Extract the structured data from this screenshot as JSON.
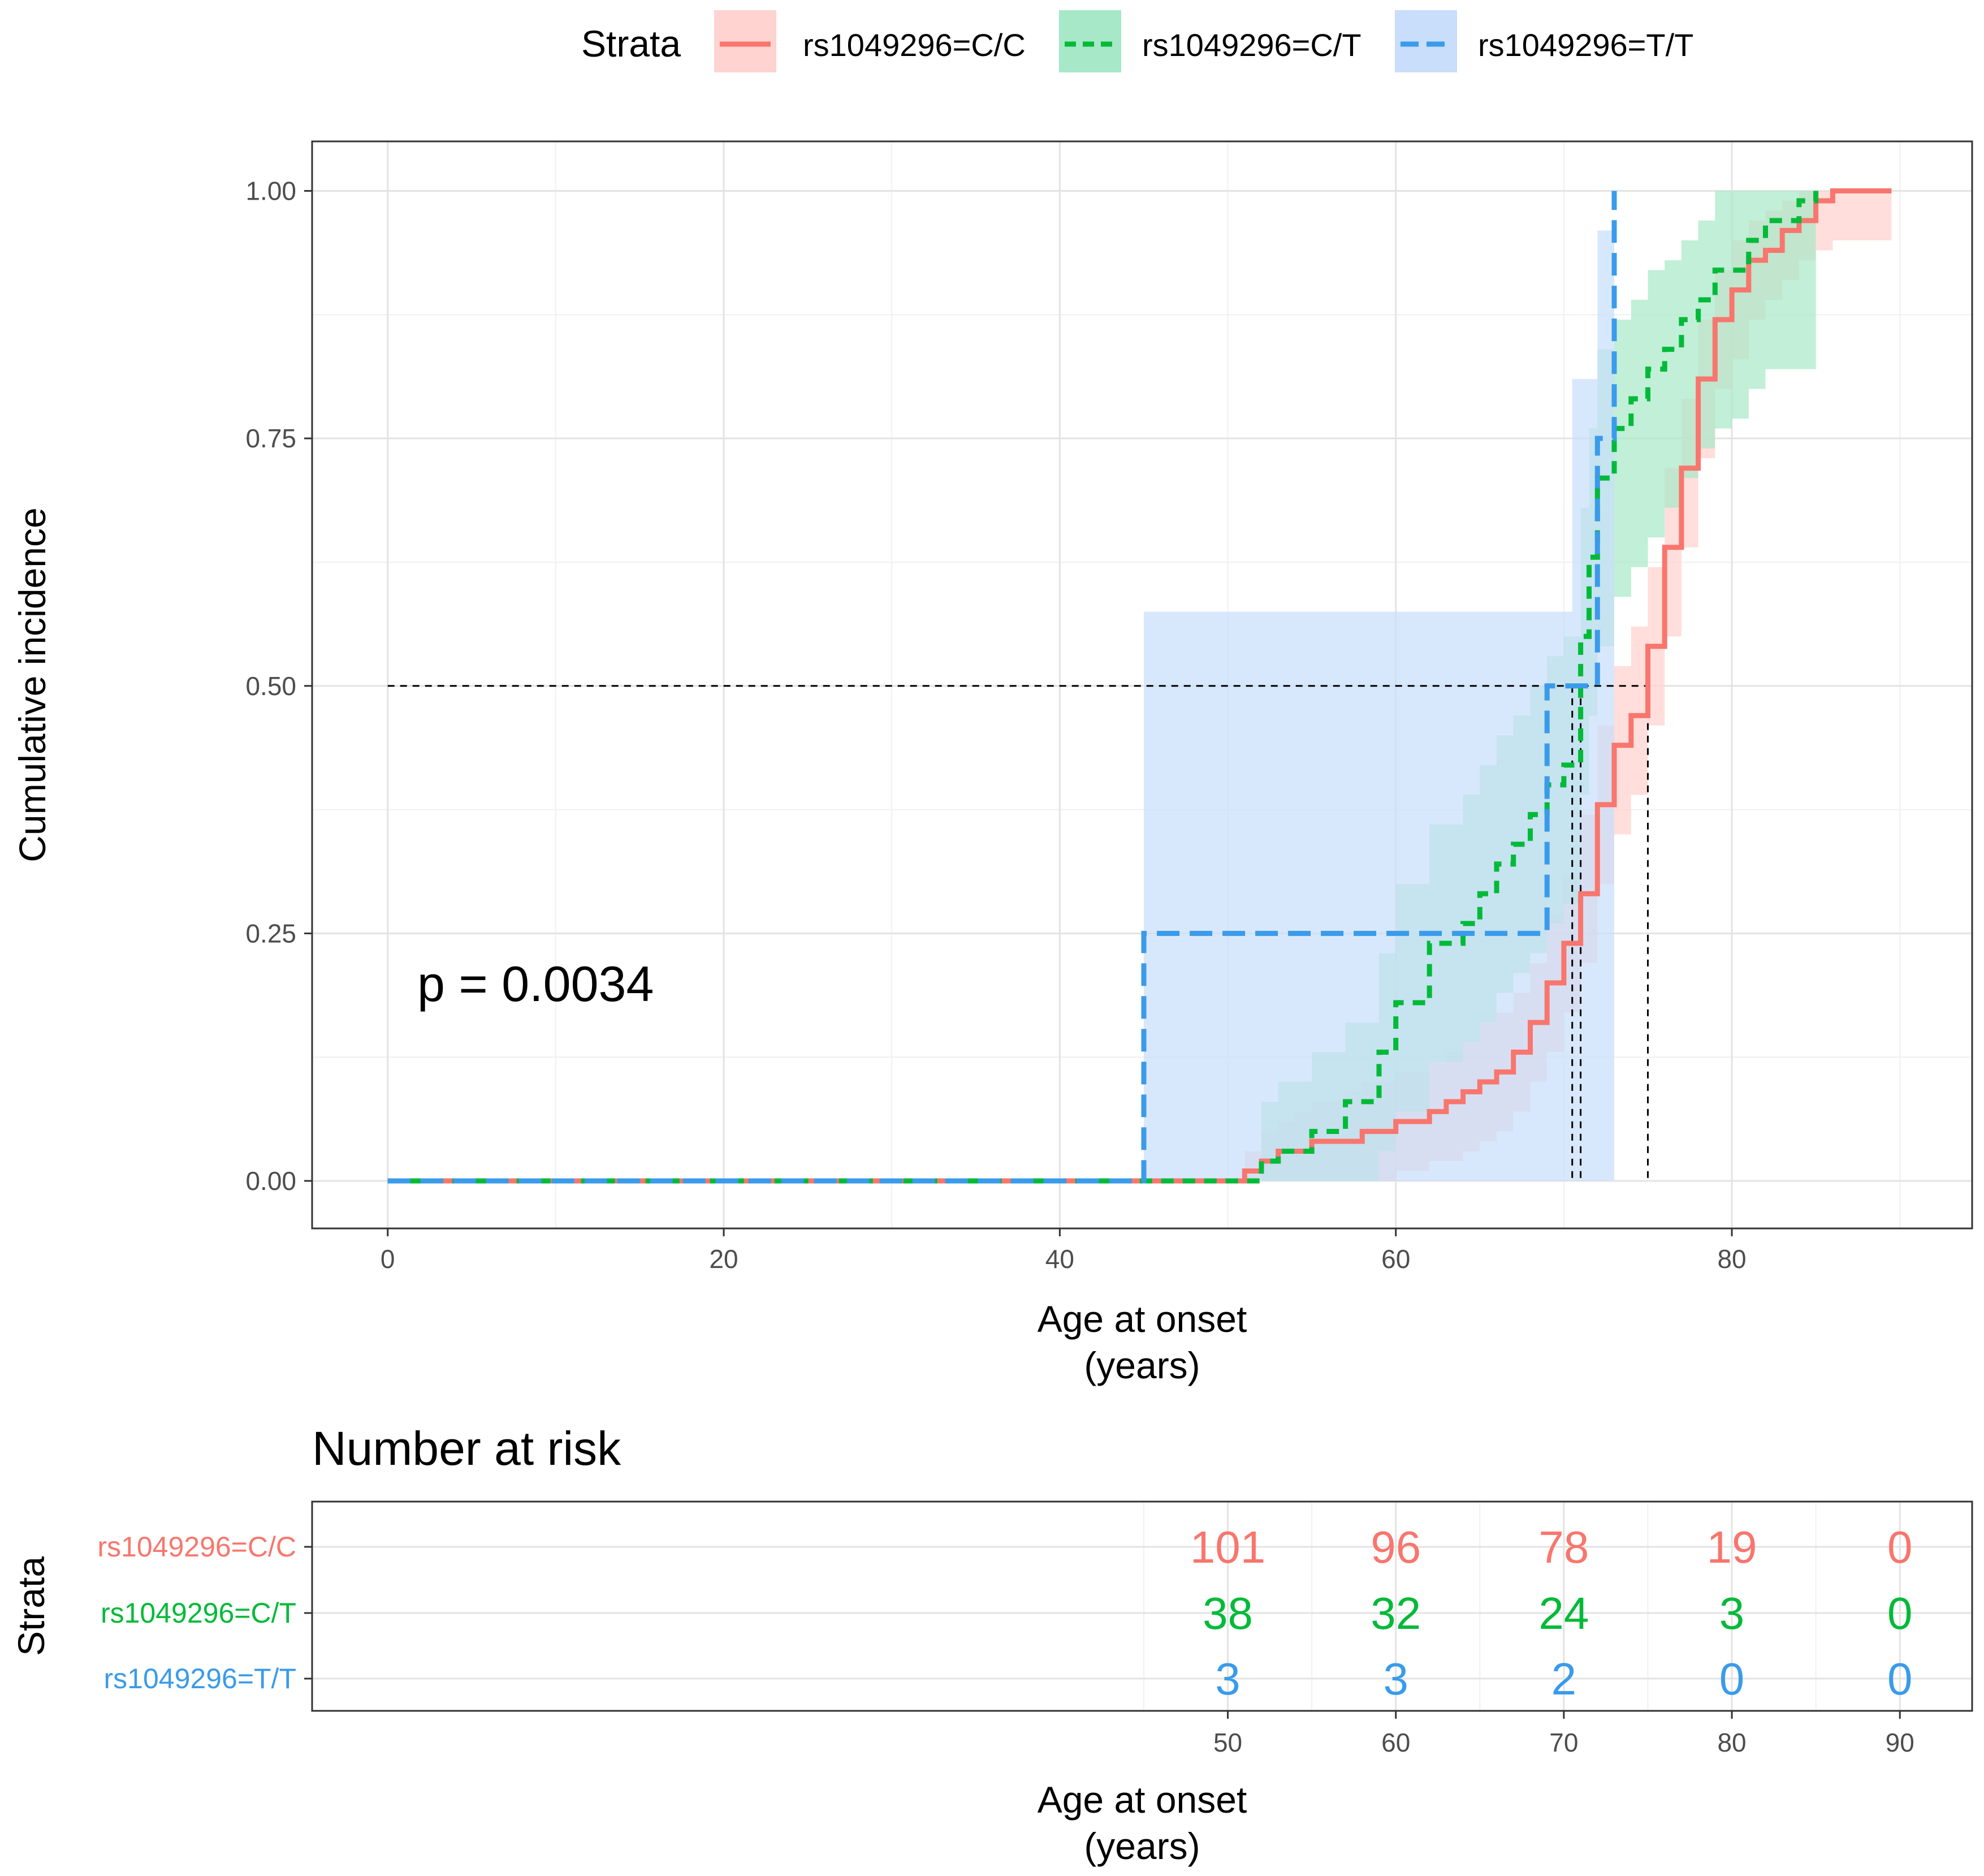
{
  "legend": {
    "title": "Strata",
    "entries": [
      {
        "label": "rs1049296=C/C",
        "color": "#F8766D",
        "fill": "#FFD3CF",
        "dash": "solid"
      },
      {
        "label": "rs1049296=C/T",
        "color": "#00BA38",
        "fill": "#A6E8C8",
        "dash": "dotted"
      },
      {
        "label": "rs1049296=T/T",
        "color": "#3A9BEA",
        "fill": "#C8DEFB",
        "dash": "dashed"
      }
    ]
  },
  "chart_data": [
    {
      "type": "line",
      "subtype": "step-cumulative-incidence",
      "title": "",
      "xlabel": "Age at onset\n(years)",
      "ylabel": "Cumulative incidence",
      "xlim": [
        -4.5,
        94.3
      ],
      "ylim": [
        -0.048,
        1.05
      ],
      "x_ticks": [
        0,
        20,
        40,
        60,
        80
      ],
      "y_ticks": [
        "0.00",
        "0.25",
        "0.50",
        "0.75",
        "1.00"
      ],
      "annotation": "p = 0.0034",
      "median_line_y": 0.5,
      "medians": [
        75.0,
        71.0,
        70.5
      ],
      "series": [
        {
          "name": "rs1049296=C/C",
          "x": [
            0,
            51,
            52,
            53,
            54,
            55,
            56,
            57,
            58,
            59,
            60,
            61,
            62,
            63,
            64,
            65,
            66,
            67,
            68,
            69,
            70,
            71,
            72,
            73,
            74,
            75,
            76,
            77,
            78,
            79,
            80,
            81,
            82,
            83,
            84,
            85,
            86,
            89.5
          ],
          "y": [
            0,
            0.01,
            0.02,
            0.03,
            0.03,
            0.04,
            0.04,
            0.04,
            0.05,
            0.05,
            0.06,
            0.06,
            0.07,
            0.08,
            0.09,
            0.1,
            0.11,
            0.13,
            0.16,
            0.2,
            0.24,
            0.29,
            0.38,
            0.44,
            0.47,
            0.54,
            0.64,
            0.72,
            0.81,
            0.87,
            0.9,
            0.93,
            0.94,
            0.96,
            0.97,
            0.99,
            1.0,
            1.0
          ],
          "lower": [
            0,
            0,
            0,
            0,
            0,
            0,
            0,
            0,
            0,
            0,
            0.01,
            0.01,
            0.02,
            0.02,
            0.03,
            0.04,
            0.05,
            0.07,
            0.1,
            0.13,
            0.17,
            0.22,
            0.3,
            0.35,
            0.39,
            0.46,
            0.55,
            0.64,
            0.73,
            0.8,
            0.83,
            0.87,
            0.89,
            0.91,
            0.93,
            0.94,
            0.95,
            0.95
          ],
          "upper": [
            0,
            0.03,
            0.05,
            0.06,
            0.07,
            0.08,
            0.08,
            0.09,
            0.1,
            0.1,
            0.11,
            0.11,
            0.12,
            0.13,
            0.14,
            0.16,
            0.17,
            0.19,
            0.22,
            0.27,
            0.31,
            0.37,
            0.46,
            0.52,
            0.56,
            0.62,
            0.72,
            0.79,
            0.87,
            0.92,
            0.95,
            0.97,
            0.98,
            0.99,
            1.0,
            1.0,
            1.0,
            1.0
          ]
        },
        {
          "name": "rs1049296=C/T",
          "x": [
            0,
            52,
            53,
            54,
            55,
            56,
            57,
            58,
            59,
            60,
            61,
            62,
            63,
            64,
            65,
            66,
            67,
            68,
            69,
            70,
            71,
            71.5,
            72,
            73,
            74,
            75,
            76,
            77,
            78,
            79,
            80,
            81,
            82,
            83,
            84,
            85
          ],
          "y": [
            0,
            0.02,
            0.03,
            0.03,
            0.05,
            0.05,
            0.08,
            0.08,
            0.13,
            0.18,
            0.18,
            0.24,
            0.24,
            0.26,
            0.29,
            0.32,
            0.34,
            0.37,
            0.4,
            0.42,
            0.55,
            0.63,
            0.71,
            0.76,
            0.79,
            0.82,
            0.84,
            0.87,
            0.89,
            0.92,
            0.92,
            0.95,
            0.97,
            0.97,
            0.99,
            1.0
          ],
          "lower": [
            0,
            0,
            0,
            0,
            0,
            0,
            0,
            0,
            0.03,
            0.07,
            0.07,
            0.12,
            0.12,
            0.14,
            0.16,
            0.19,
            0.21,
            0.23,
            0.26,
            0.28,
            0.39,
            0.47,
            0.54,
            0.59,
            0.62,
            0.65,
            0.68,
            0.71,
            0.74,
            0.76,
            0.77,
            0.8,
            0.82,
            0.82,
            0.82,
            0.82
          ],
          "upper": [
            0,
            0.08,
            0.1,
            0.1,
            0.13,
            0.13,
            0.16,
            0.16,
            0.23,
            0.3,
            0.3,
            0.36,
            0.36,
            0.39,
            0.42,
            0.45,
            0.47,
            0.5,
            0.53,
            0.55,
            0.68,
            0.76,
            0.84,
            0.87,
            0.89,
            0.92,
            0.93,
            0.95,
            0.97,
            1.0,
            1.0,
            1.0,
            1.0,
            1.0,
            1.0,
            1.0
          ]
        },
        {
          "name": "rs1049296=T/T",
          "x": [
            0,
            45,
            69,
            70.5,
            72,
            73
          ],
          "y": [
            0,
            0.25,
            0.5,
            0.5,
            0.75,
            1.0
          ],
          "lower": [
            0,
            0,
            0,
            0,
            0,
            0
          ],
          "upper": [
            0,
            0.575,
            0.575,
            0.81,
            0.96,
            1.0
          ]
        }
      ]
    },
    {
      "type": "table",
      "title": "Number at risk",
      "xlabel": "Age at onset\n(years)",
      "ylabel": "Strata",
      "xlim": [
        -4.5,
        94.3
      ],
      "x_ticks": [
        50,
        60,
        70,
        80,
        90
      ],
      "rows": [
        {
          "name": "rs1049296=C/C",
          "values": [
            101,
            96,
            78,
            19,
            0
          ]
        },
        {
          "name": "rs1049296=C/T",
          "values": [
            38,
            32,
            24,
            3,
            0
          ]
        },
        {
          "name": "rs1049296=T/T",
          "values": [
            3,
            3,
            2,
            0,
            0
          ]
        }
      ]
    }
  ]
}
